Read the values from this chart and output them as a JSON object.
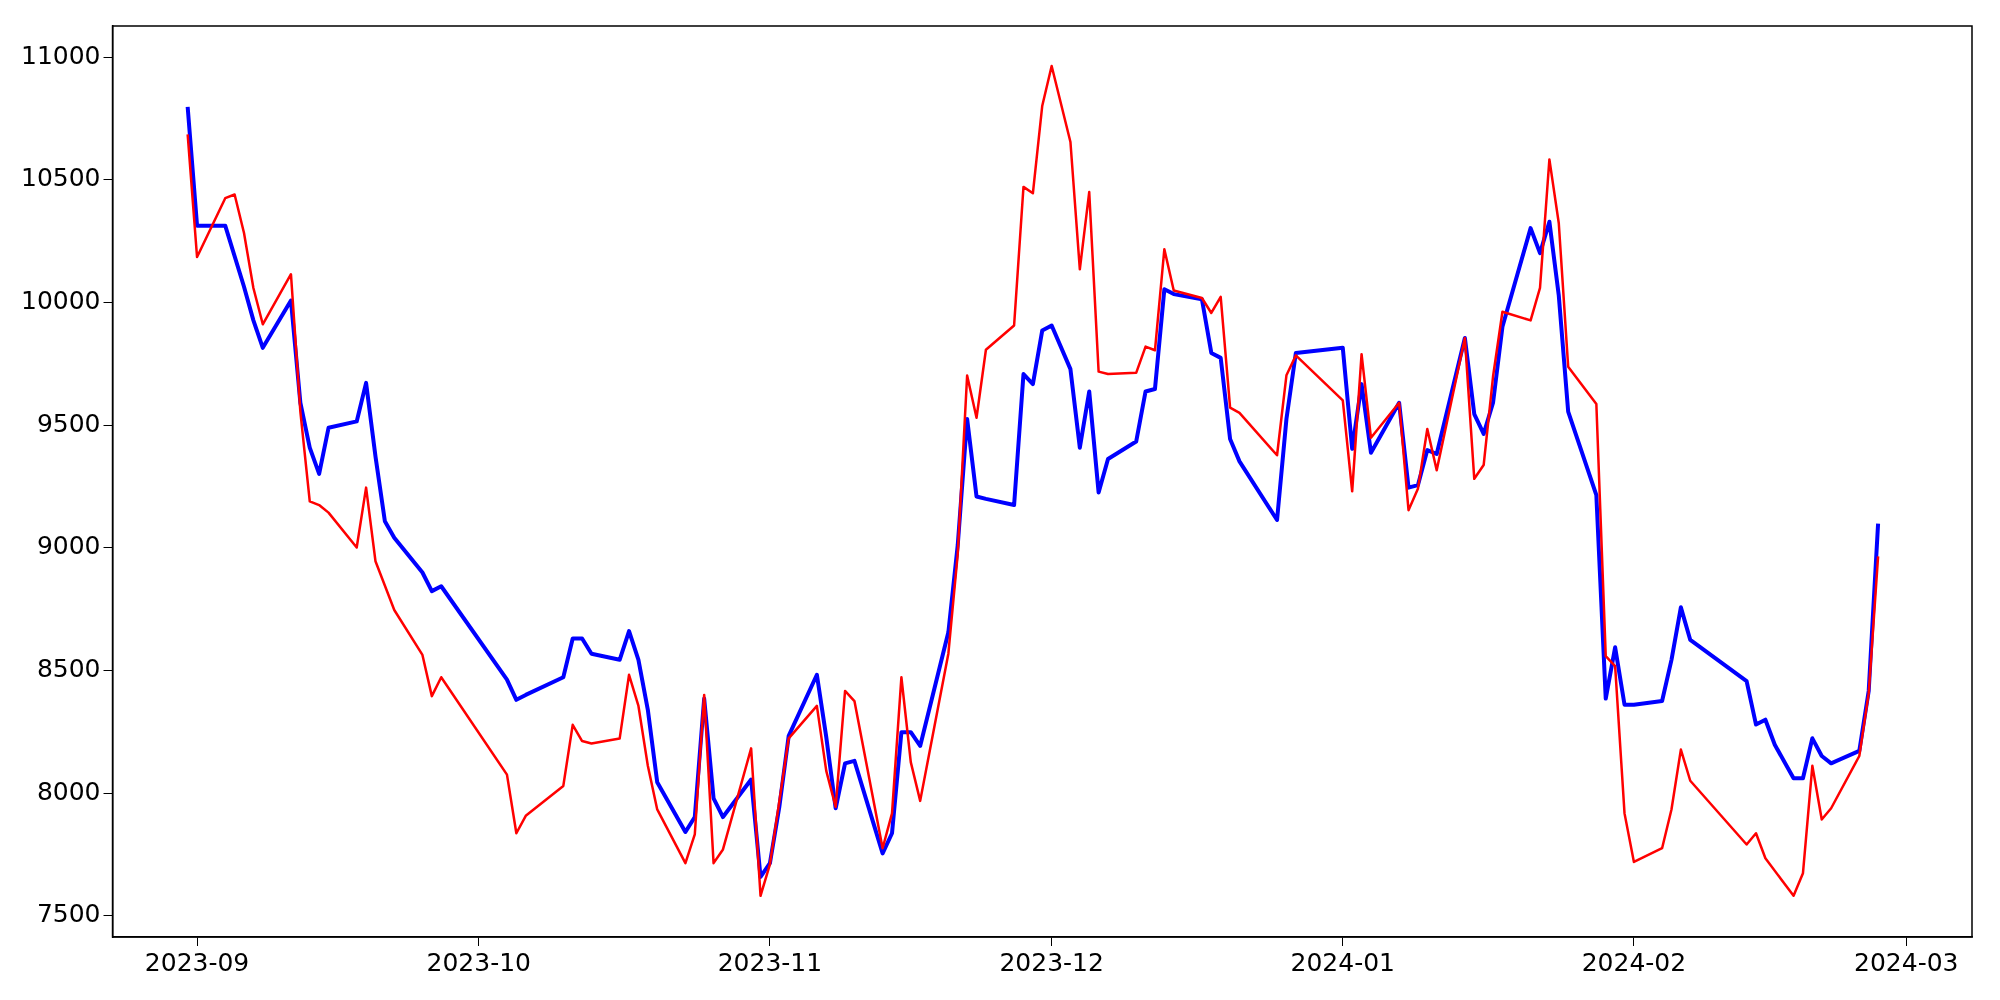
{
  "chart_data": {
    "type": "line",
    "xlim": [
      "2023-08-23",
      "2024-03-08"
    ],
    "xticks": [
      "2023-09",
      "2023-10",
      "2023-11",
      "2023-12",
      "2024-01",
      "2024-02",
      "2024-03"
    ],
    "ylim": [
      7413,
      11127
    ],
    "yticks": [
      7500,
      8000,
      8500,
      9000,
      9500,
      10000,
      10500,
      11000
    ],
    "legend": false,
    "marker": "none",
    "line_style": "solid",
    "series": [
      {
        "color": "#ff0000",
        "x": [
          "2023-08-31",
          "2023-09-01",
          "2023-09-04",
          "2023-09-05",
          "2023-09-06",
          "2023-09-07",
          "2023-09-08",
          "2023-09-11",
          "2023-09-12",
          "2023-09-13",
          "2023-09-14",
          "2023-09-15",
          "2023-09-18",
          "2023-09-19",
          "2023-09-20",
          "2023-09-22",
          "2023-09-25",
          "2023-09-26",
          "2023-09-27",
          "2023-10-04",
          "2023-10-05",
          "2023-10-06",
          "2023-10-10",
          "2023-10-11",
          "2023-10-12",
          "2023-10-13",
          "2023-10-16",
          "2023-10-17",
          "2023-10-18",
          "2023-10-19",
          "2023-10-20",
          "2023-10-23",
          "2023-10-24",
          "2023-10-25",
          "2023-10-26",
          "2023-10-27",
          "2023-10-30",
          "2023-10-31",
          "2023-11-01",
          "2023-11-03",
          "2023-11-06",
          "2023-11-07",
          "2023-11-08",
          "2023-11-09",
          "2023-11-10",
          "2023-11-13",
          "2023-11-14",
          "2023-11-15",
          "2023-11-16",
          "2023-11-17",
          "2023-11-20",
          "2023-11-21",
          "2023-11-22",
          "2023-11-23",
          "2023-11-24",
          "2023-11-27",
          "2023-11-28",
          "2023-11-29",
          "2023-11-30",
          "2023-12-01",
          "2023-12-03",
          "2023-12-04",
          "2023-12-05",
          "2023-12-06",
          "2023-12-07",
          "2023-12-10",
          "2023-12-11",
          "2023-12-12",
          "2023-12-13",
          "2023-12-14",
          "2023-12-17",
          "2023-12-18",
          "2023-12-19",
          "2023-12-20",
          "2023-12-21",
          "2023-12-25",
          "2023-12-26",
          "2023-12-27",
          "2024-01-01",
          "2024-01-02",
          "2024-01-03",
          "2024-01-04",
          "2024-01-07",
          "2024-01-08",
          "2024-01-09",
          "2024-01-10",
          "2024-01-11",
          "2024-01-14",
          "2024-01-15",
          "2024-01-16",
          "2024-01-17",
          "2024-01-18",
          "2024-01-21",
          "2024-01-22",
          "2024-01-23",
          "2024-01-24",
          "2024-01-25",
          "2024-01-28",
          "2024-01-29",
          "2024-01-30",
          "2024-01-31",
          "2024-02-01",
          "2024-02-04",
          "2024-02-05",
          "2024-02-06",
          "2024-02-07",
          "2024-02-13",
          "2024-02-14",
          "2024-02-15",
          "2024-02-18",
          "2024-02-19",
          "2024-02-20",
          "2024-02-21",
          "2024-02-22",
          "2024-02-25",
          "2024-02-26",
          "2024-02-27"
        ],
        "values": [
          10685,
          10185,
          10425,
          10440,
          10283,
          10059,
          9911,
          10115,
          9555,
          9189,
          9174,
          9143,
          9001,
          9245,
          8945,
          8746,
          8563,
          8395,
          8472,
          8075,
          7836,
          7907,
          8029,
          8278,
          8212,
          8202,
          8222,
          8482,
          8355,
          8111,
          7933,
          7714,
          7831,
          8400,
          7714,
          7770,
          8182,
          7581,
          7709,
          8223,
          8355,
          8090,
          7943,
          8416,
          8375,
          7775,
          7917,
          8472,
          8126,
          7968,
          8568,
          8975,
          9702,
          9530,
          9807,
          9906,
          10471,
          10445,
          10802,
          10964,
          10654,
          10135,
          10450,
          9718,
          9708,
          9713,
          9820,
          9805,
          10217,
          10049,
          10018,
          9957,
          10023,
          9571,
          9550,
          9377,
          9703,
          9784,
          9601,
          9230,
          9789,
          9448,
          9591,
          9153,
          9240,
          9484,
          9316,
          9855,
          9281,
          9337,
          9698,
          9962,
          9927,
          10059,
          10583,
          10323,
          9738,
          9586,
          8558,
          8517,
          7917,
          7719,
          7775,
          7933,
          8177,
          8050,
          7790,
          7836,
          7734,
          7581,
          7673,
          8111,
          7892,
          7938,
          8151,
          8406,
          8965
        ]
      },
      {
        "color": "#0000ff",
        "x": [
          "2023-08-31",
          "2023-09-01",
          "2023-09-04",
          "2023-09-06",
          "2023-09-07",
          "2023-09-08",
          "2023-09-11",
          "2023-09-12",
          "2023-09-13",
          "2023-09-14",
          "2023-09-15",
          "2023-09-18",
          "2023-09-19",
          "2023-09-20",
          "2023-09-21",
          "2023-09-22",
          "2023-09-25",
          "2023-09-26",
          "2023-09-27",
          "2023-10-04",
          "2023-10-05",
          "2023-10-06",
          "2023-10-10",
          "2023-10-11",
          "2023-10-12",
          "2023-10-13",
          "2023-10-16",
          "2023-10-17",
          "2023-10-18",
          "2023-10-19",
          "2023-10-20",
          "2023-10-23",
          "2023-10-24",
          "2023-10-25",
          "2023-10-26",
          "2023-10-27",
          "2023-10-30",
          "2023-10-31",
          "2023-11-01",
          "2023-11-02",
          "2023-11-03",
          "2023-11-06",
          "2023-11-07",
          "2023-11-08",
          "2023-11-09",
          "2023-11-10",
          "2023-11-13",
          "2023-11-14",
          "2023-11-15",
          "2023-11-16",
          "2023-11-17",
          "2023-11-20",
          "2023-11-21",
          "2023-11-22",
          "2023-11-23",
          "2023-11-24",
          "2023-11-27",
          "2023-11-28",
          "2023-11-29",
          "2023-11-30",
          "2023-12-01",
          "2023-12-03",
          "2023-12-04",
          "2023-12-05",
          "2023-12-06",
          "2023-12-07",
          "2023-12-10",
          "2023-12-11",
          "2023-12-12",
          "2023-12-13",
          "2023-12-14",
          "2023-12-17",
          "2023-12-18",
          "2023-12-19",
          "2023-12-20",
          "2023-12-21",
          "2023-12-25",
          "2023-12-26",
          "2023-12-27",
          "2024-01-01",
          "2024-01-02",
          "2024-01-03",
          "2024-01-04",
          "2024-01-07",
          "2024-01-08",
          "2024-01-09",
          "2024-01-10",
          "2024-01-11",
          "2024-01-14",
          "2024-01-15",
          "2024-01-16",
          "2024-01-17",
          "2024-01-18",
          "2024-01-21",
          "2024-01-22",
          "2024-01-23",
          "2024-01-24",
          "2024-01-25",
          "2024-01-28",
          "2024-01-29",
          "2024-01-30",
          "2024-01-31",
          "2024-02-01",
          "2024-02-04",
          "2024-02-05",
          "2024-02-06",
          "2024-02-07",
          "2024-02-13",
          "2024-02-14",
          "2024-02-15",
          "2024-02-16",
          "2024-02-18",
          "2024-02-19",
          "2024-02-20",
          "2024-02-21",
          "2024-02-22",
          "2024-02-25",
          "2024-02-26",
          "2024-02-27"
        ],
        "values": [
          10797,
          10313,
          10313,
          10064,
          9927,
          9815,
          10008,
          9591,
          9408,
          9301,
          9489,
          9515,
          9672,
          9372,
          9108,
          9041,
          8899,
          8823,
          8843,
          8462,
          8380,
          8400,
          8472,
          8630,
          8630,
          8568,
          8543,
          8660,
          8543,
          8339,
          8044,
          7841,
          7902,
          8385,
          7978,
          7902,
          8055,
          7658,
          7714,
          7943,
          8233,
          8482,
          8228,
          7938,
          8121,
          8131,
          7754,
          7836,
          8248,
          8248,
          8192,
          8655,
          9011,
          9525,
          9209,
          9199,
          9174,
          9708,
          9667,
          9886,
          9906,
          9728,
          9408,
          9637,
          9225,
          9362,
          9433,
          9637,
          9647,
          10054,
          10034,
          10013,
          9794,
          9774,
          9443,
          9352,
          9113,
          9525,
          9794,
          9815,
          9403,
          9667,
          9387,
          9591,
          9245,
          9255,
          9398,
          9382,
          9855,
          9545,
          9464,
          9591,
          9901,
          10303,
          10201,
          10329,
          10028,
          9555,
          9214,
          8385,
          8594,
          8360,
          8360,
          8375,
          8543,
          8757,
          8624,
          8456,
          8279,
          8299,
          8197,
          8060,
          8060,
          8223,
          8151,
          8121,
          8172,
          8416,
          9098
        ]
      }
    ]
  }
}
